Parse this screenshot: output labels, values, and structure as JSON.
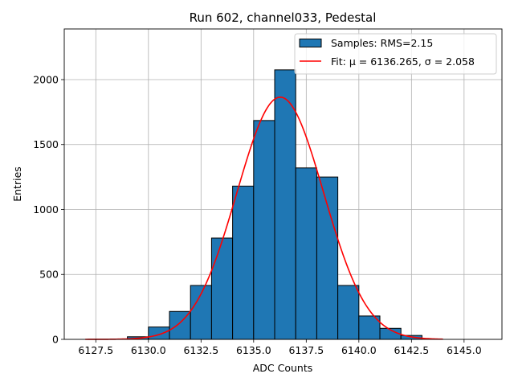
{
  "chart_data": {
    "type": "bar",
    "title": "Run 602, channel033, Pedestal",
    "xlabel": "ADC Counts",
    "ylabel": "Entries",
    "xlim": [
      6126.0,
      6146.8
    ],
    "ylim": [
      0,
      2390
    ],
    "xticks": [
      6127.5,
      6130.0,
      6132.5,
      6135.0,
      6137.5,
      6140.0,
      6142.5,
      6145.0
    ],
    "xtick_labels": [
      "6127.5",
      "6130.0",
      "6132.5",
      "6135.0",
      "6137.5",
      "6140.0",
      "6142.5",
      "6145.0"
    ],
    "yticks": [
      0,
      500,
      1000,
      1500,
      2000
    ],
    "ytick_labels": [
      "0",
      "500",
      "1000",
      "1500",
      "2000"
    ],
    "grid": true,
    "bar_color": "#1f77b4",
    "fit_color": "#ff0000",
    "histogram": {
      "bin_width": 1,
      "bins": [
        {
          "x0": 6129,
          "x1": 6130,
          "count": 20
        },
        {
          "x0": 6130,
          "x1": 6131,
          "count": 95
        },
        {
          "x0": 6131,
          "x1": 6132,
          "count": 215
        },
        {
          "x0": 6132,
          "x1": 6133,
          "count": 415
        },
        {
          "x0": 6133,
          "x1": 6134,
          "count": 780
        },
        {
          "x0": 6134,
          "x1": 6135,
          "count": 1180
        },
        {
          "x0": 6135,
          "x1": 6136,
          "count": 1685
        },
        {
          "x0": 6136,
          "x1": 6137,
          "count": 2075
        },
        {
          "x0": 6137,
          "x1": 6138,
          "count": 1320
        },
        {
          "x0": 6138,
          "x1": 6139,
          "count": 1250
        },
        {
          "x0": 6139,
          "x1": 6140,
          "count": 415
        },
        {
          "x0": 6140,
          "x1": 6141,
          "count": 180
        },
        {
          "x0": 6141,
          "x1": 6142,
          "count": 85
        },
        {
          "x0": 6142,
          "x1": 6143,
          "count": 30
        }
      ]
    },
    "fit": {
      "mu": 6136.265,
      "sigma": 2.058,
      "amplitude": 1865,
      "x_range": [
        6127.0,
        6144.0
      ]
    },
    "legend": {
      "position": "top-right",
      "entries": [
        {
          "label": "Samples: RMS=2.15",
          "kind": "patch"
        },
        {
          "label": "Fit: μ = 6136.265, σ = 2.058",
          "kind": "line"
        }
      ]
    }
  }
}
